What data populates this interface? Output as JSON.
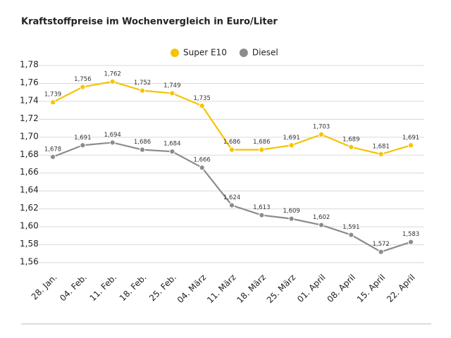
{
  "chart_data": {
    "type": "line",
    "title": "Kraftstoffpreise im Wochenvergleich in Euro/Liter",
    "categories": [
      "28. Jan.",
      "04. Feb.",
      "11. Feb.",
      "18. Feb.",
      "25. Feb.",
      "04. März",
      "11. März",
      "18. März",
      "25. März",
      "01. April",
      "08. April",
      "15. April",
      "22. April"
    ],
    "series": [
      {
        "name": "Super E10",
        "color": "#f5c400",
        "values": [
          1.739,
          1.756,
          1.762,
          1.752,
          1.749,
          1.735,
          1.686,
          1.686,
          1.691,
          1.703,
          1.689,
          1.681,
          1.691
        ],
        "value_labels": [
          "1,739",
          "1,756",
          "1,762",
          "1,752",
          "1,749",
          "1,735",
          "1,686",
          "1,686",
          "1,691",
          "1,703",
          "1,689",
          "1,681",
          "1,691"
        ]
      },
      {
        "name": "Diesel",
        "color": "#8c8c8c",
        "values": [
          1.678,
          1.691,
          1.694,
          1.686,
          1.684,
          1.666,
          1.624,
          1.613,
          1.609,
          1.602,
          1.591,
          1.572,
          1.583
        ],
        "value_labels": [
          "1,678",
          "1,691",
          "1,694",
          "1,686",
          "1,684",
          "1,666",
          "1,624",
          "1,613",
          "1,609",
          "1,602",
          "1,591",
          "1,572",
          "1,583"
        ]
      }
    ],
    "ylim": [
      1.56,
      1.78
    ],
    "yticks": [
      {
        "value": 1.56,
        "label": "1,56"
      },
      {
        "value": 1.58,
        "label": "1,58"
      },
      {
        "value": 1.6,
        "label": "1,60"
      },
      {
        "value": 1.62,
        "label": "1,62"
      },
      {
        "value": 1.64,
        "label": "1,64"
      },
      {
        "value": 1.66,
        "label": "1,66"
      },
      {
        "value": 1.68,
        "label": "1,68"
      },
      {
        "value": 1.7,
        "label": "1,70"
      },
      {
        "value": 1.72,
        "label": "1,72"
      },
      {
        "value": 1.74,
        "label": "1,74"
      },
      {
        "value": 1.76,
        "label": "1,76"
      },
      {
        "value": 1.78,
        "label": "1,78"
      }
    ],
    "grid": true,
    "legend": "top"
  }
}
